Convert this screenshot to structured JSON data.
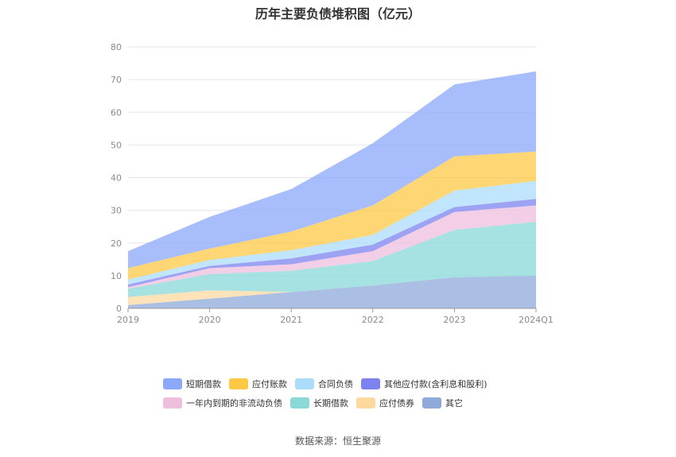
{
  "chart_data": {
    "type": "area",
    "stacked": true,
    "title": "历年主要负债堆积图（亿元）",
    "x": [
      "2019",
      "2020",
      "2021",
      "2022",
      "2023",
      "2024Q1"
    ],
    "ylim": [
      0,
      80
    ],
    "yticks": [
      0,
      10,
      20,
      30,
      40,
      50,
      60,
      70,
      80
    ],
    "grid": true,
    "legend_position": "bottom",
    "series": [
      {
        "name": "其它",
        "color": "#8eaad9",
        "values": [
          1.0,
          3.0,
          5.0,
          7.0,
          9.5,
          10.0
        ]
      },
      {
        "name": "应付债券",
        "color": "#fdd9a0",
        "values": [
          2.5,
          2.5,
          0.0,
          0.0,
          0.0,
          0.0
        ]
      },
      {
        "name": "长期借款",
        "color": "#8ad8d8",
        "values": [
          2.5,
          5.0,
          6.5,
          7.5,
          14.5,
          16.5
        ]
      },
      {
        "name": "一年内到期的非流动负债",
        "color": "#edbfdd",
        "values": [
          0.5,
          1.8,
          2.0,
          3.0,
          5.5,
          5.0
        ]
      },
      {
        "name": "其他应付款(含利息和股利)",
        "color": "#7c83ef",
        "values": [
          0.8,
          0.7,
          1.8,
          2.0,
          1.5,
          2.0
        ]
      },
      {
        "name": "合同负债",
        "color": "#abdcfb",
        "values": [
          1.5,
          1.8,
          2.5,
          3.0,
          5.0,
          5.5
        ]
      },
      {
        "name": "应付账款",
        "color": "#fdc844",
        "values": [
          3.5,
          3.5,
          5.7,
          9.0,
          10.5,
          9.0
        ]
      },
      {
        "name": "短期借款",
        "color": "#8ba8fb",
        "values": [
          5.2,
          9.7,
          13.0,
          19.0,
          22.0,
          24.5
        ]
      }
    ],
    "legend_order": [
      "短期借款",
      "应付账款",
      "合同负债",
      "其他应付款(含利息和股利)",
      "一年内到期的非流动负债",
      "长期借款",
      "应付债券",
      "其它"
    ]
  },
  "source": "数据来源：恒生聚源"
}
